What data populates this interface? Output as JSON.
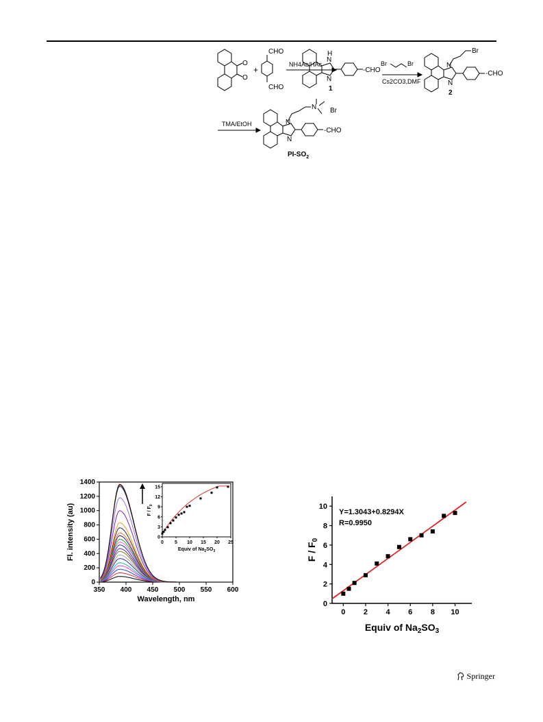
{
  "publisher": {
    "name": "Springer",
    "logo_icon": "springer-horse-icon"
  },
  "scheme": {
    "reagents": {
      "step1": "NH4Ac/HAc",
      "step2_a": "Br",
      "step2_b": "Br",
      "step2_cond": "Cs2CO3,DMF",
      "step3": "TMA/EtOH"
    },
    "labels": {
      "c1": "1",
      "c2": "2",
      "product_main": "PI-SO",
      "product_sub": "2"
    },
    "groups": {
      "cho": "CHO",
      "cho_short": "-CHO",
      "nh": "H",
      "n": "N",
      "br": "Br",
      "br_minus": "Br",
      "o": "O",
      "plus": "+"
    }
  },
  "chart_data": [
    {
      "type": "line",
      "xlabel": "Wavelength, nm",
      "ylabel": "Fl. intensity (au)",
      "xlim": [
        350,
        600
      ],
      "ylim": [
        0,
        1400
      ],
      "xticks": [
        350,
        400,
        450,
        500,
        550,
        600
      ],
      "yticks": [
        0,
        200,
        400,
        600,
        800,
        1000,
        1200,
        1400
      ],
      "peak_x": 388,
      "series": [
        {
          "peak": 80,
          "color": "#000000"
        },
        {
          "peak": 130,
          "color": "#e03030"
        },
        {
          "peak": 180,
          "color": "#3040e0"
        },
        {
          "peak": 230,
          "color": "#e040e0"
        },
        {
          "peak": 270,
          "color": "#20b0c0"
        },
        {
          "peak": 330,
          "color": "#303090"
        },
        {
          "peak": 380,
          "color": "#a0a0a0"
        },
        {
          "peak": 430,
          "color": "#808020"
        },
        {
          "peak": 470,
          "color": "#7020a0"
        },
        {
          "peak": 520,
          "color": "#2040a0"
        },
        {
          "peak": 560,
          "color": "#ff60ff"
        },
        {
          "peak": 600,
          "color": "#20a020"
        },
        {
          "peak": 650,
          "color": "#202080"
        },
        {
          "peak": 690,
          "color": "#ff7030"
        },
        {
          "peak": 760,
          "color": "#303030"
        },
        {
          "peak": 830,
          "color": "#e8a020"
        },
        {
          "peak": 1000,
          "color": "#8020c0"
        },
        {
          "peak": 1180,
          "color": "#9070e0"
        },
        {
          "peak": 1340,
          "color": "#204080"
        },
        {
          "peak": 1370,
          "color": "#c02020"
        },
        {
          "peak": 1360,
          "color": "#101010"
        }
      ],
      "inset": {
        "type": "scatter",
        "xlabel_main": "Equiv of Na",
        "xlabel_sub1": "2",
        "xlabel_mid": "SO",
        "xlabel_sub2": "3",
        "ylabel_main": "F / F",
        "ylabel_sub": "0",
        "xlim": [
          0,
          25
        ],
        "ylim": [
          0,
          16
        ],
        "xticks": [
          0,
          5,
          10,
          15,
          20,
          25
        ],
        "yticks": [
          0,
          3,
          6,
          9,
          12,
          15
        ],
        "x": [
          0,
          0.5,
          1,
          2,
          3,
          4,
          5,
          6,
          7,
          8,
          9,
          10,
          14,
          18,
          20,
          24
        ],
        "y": [
          1.0,
          1.5,
          2.1,
          2.9,
          4.1,
          4.9,
          5.8,
          6.6,
          7.0,
          7.4,
          9.0,
          9.3,
          11.5,
          13.2,
          14.8,
          15.0
        ],
        "fit_color": "#e03030"
      }
    },
    {
      "type": "scatter",
      "xlabel_main": "Equiv of Na",
      "xlabel_sub1": "2",
      "xlabel_mid": "SO",
      "xlabel_sub2": "3",
      "ylabel_main": "F / F",
      "ylabel_sub": "0",
      "xlim": [
        -1,
        11.5
      ],
      "ylim": [
        0,
        11
      ],
      "xticks": [
        0,
        2,
        4,
        6,
        8,
        10
      ],
      "yticks": [
        0,
        2,
        4,
        6,
        8,
        10
      ],
      "equation": "Y=1.3043+0.8294X",
      "r_value": "R=0.9950",
      "fit": {
        "intercept": 1.3043,
        "slope": 0.8294,
        "color": "#e02020"
      },
      "x": [
        0,
        0.5,
        1,
        2,
        3,
        4,
        5,
        6,
        7,
        8,
        9,
        10
      ],
      "y": [
        1.0,
        1.5,
        2.1,
        2.9,
        4.1,
        4.85,
        5.8,
        6.6,
        7.0,
        7.4,
        9.0,
        9.3
      ]
    }
  ]
}
